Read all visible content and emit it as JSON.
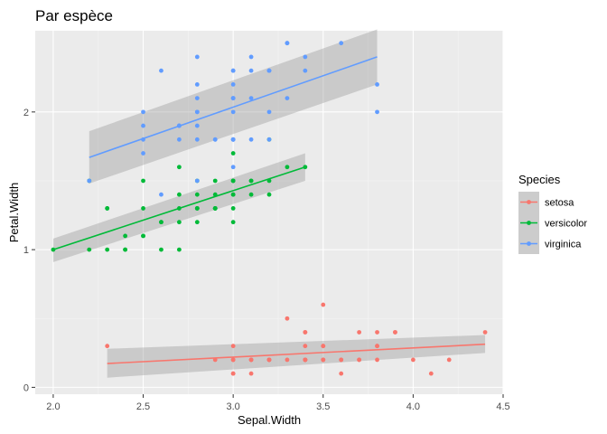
{
  "chart_data": {
    "type": "scatter",
    "title": "Par espèce",
    "xlabel": "Sepal.Width",
    "ylabel": "Petal.Width",
    "xlim": [
      1.9,
      4.5
    ],
    "ylim": [
      -0.05,
      2.59
    ],
    "x_ticks": [
      "2.0",
      "2.5",
      "3.0",
      "3.5",
      "4.0",
      "4.5"
    ],
    "x_tick_values": [
      2.0,
      2.5,
      3.0,
      3.5,
      4.0,
      4.5
    ],
    "y_ticks": [
      "0",
      "1",
      "2"
    ],
    "y_tick_values": [
      0,
      1,
      2
    ],
    "grid": true,
    "legend": {
      "title": "Species",
      "placement": "right"
    },
    "series": [
      {
        "name": "setosa",
        "color": "#F8766D",
        "points": [
          [
            3.5,
            0.2
          ],
          [
            3.0,
            0.2
          ],
          [
            3.2,
            0.2
          ],
          [
            3.1,
            0.2
          ],
          [
            3.6,
            0.2
          ],
          [
            3.9,
            0.4
          ],
          [
            3.4,
            0.3
          ],
          [
            3.4,
            0.2
          ],
          [
            2.9,
            0.2
          ],
          [
            3.1,
            0.1
          ],
          [
            3.7,
            0.2
          ],
          [
            3.4,
            0.2
          ],
          [
            3.0,
            0.1
          ],
          [
            3.0,
            0.1
          ],
          [
            4.0,
            0.2
          ],
          [
            4.4,
            0.4
          ],
          [
            3.9,
            0.4
          ],
          [
            3.5,
            0.3
          ],
          [
            3.8,
            0.3
          ],
          [
            3.8,
            0.3
          ],
          [
            3.4,
            0.2
          ],
          [
            3.7,
            0.4
          ],
          [
            3.6,
            0.2
          ],
          [
            3.3,
            0.5
          ],
          [
            3.4,
            0.2
          ],
          [
            3.0,
            0.2
          ],
          [
            3.4,
            0.4
          ],
          [
            3.5,
            0.2
          ],
          [
            3.4,
            0.2
          ],
          [
            3.2,
            0.2
          ],
          [
            3.1,
            0.2
          ],
          [
            3.4,
            0.4
          ],
          [
            4.1,
            0.1
          ],
          [
            4.2,
            0.2
          ],
          [
            3.1,
            0.2
          ],
          [
            3.2,
            0.2
          ],
          [
            3.5,
            0.2
          ],
          [
            3.6,
            0.1
          ],
          [
            3.0,
            0.2
          ],
          [
            3.4,
            0.2
          ],
          [
            3.5,
            0.3
          ],
          [
            2.3,
            0.3
          ],
          [
            3.2,
            0.2
          ],
          [
            3.5,
            0.6
          ],
          [
            3.8,
            0.4
          ],
          [
            3.0,
            0.3
          ],
          [
            3.8,
            0.2
          ],
          [
            3.2,
            0.2
          ],
          [
            3.7,
            0.2
          ],
          [
            3.3,
            0.2
          ]
        ],
        "fit": {
          "x": [
            2.3,
            4.4
          ],
          "y": [
            0.173,
            0.313
          ]
        },
        "band_upper": [
          0.28,
          0.38
        ],
        "band_lower": [
          0.07,
          0.25
        ]
      },
      {
        "name": "versicolor",
        "color": "#00BA38",
        "points": [
          [
            3.2,
            1.4
          ],
          [
            3.2,
            1.5
          ],
          [
            3.1,
            1.5
          ],
          [
            2.3,
            1.3
          ],
          [
            2.8,
            1.5
          ],
          [
            2.8,
            1.3
          ],
          [
            3.3,
            1.6
          ],
          [
            2.4,
            1.0
          ],
          [
            2.9,
            1.3
          ],
          [
            2.7,
            1.4
          ],
          [
            2.0,
            1.0
          ],
          [
            3.0,
            1.5
          ],
          [
            2.2,
            1.0
          ],
          [
            2.9,
            1.4
          ],
          [
            2.9,
            1.3
          ],
          [
            3.1,
            1.4
          ],
          [
            3.0,
            1.5
          ],
          [
            2.7,
            1.0
          ],
          [
            2.2,
            1.5
          ],
          [
            2.5,
            1.1
          ],
          [
            3.2,
            1.8
          ],
          [
            2.8,
            1.3
          ],
          [
            2.5,
            1.5
          ],
          [
            2.8,
            1.2
          ],
          [
            2.9,
            1.3
          ],
          [
            3.0,
            1.4
          ],
          [
            2.8,
            1.4
          ],
          [
            3.0,
            1.7
          ],
          [
            2.9,
            1.5
          ],
          [
            2.6,
            1.0
          ],
          [
            2.4,
            1.1
          ],
          [
            2.4,
            1.0
          ],
          [
            2.7,
            1.2
          ],
          [
            2.7,
            1.6
          ],
          [
            3.0,
            1.5
          ],
          [
            3.4,
            1.6
          ],
          [
            3.1,
            1.5
          ],
          [
            2.3,
            1.3
          ],
          [
            3.0,
            1.3
          ],
          [
            2.5,
            1.3
          ],
          [
            2.6,
            1.2
          ],
          [
            3.0,
            1.4
          ],
          [
            2.6,
            1.2
          ],
          [
            2.3,
            1.0
          ],
          [
            2.7,
            1.3
          ],
          [
            3.0,
            1.2
          ],
          [
            2.9,
            1.3
          ],
          [
            2.9,
            1.3
          ],
          [
            2.5,
            1.1
          ],
          [
            2.8,
            1.3
          ]
        ],
        "fit": {
          "x": [
            2.0,
            3.4
          ],
          "y": [
            1.0,
            1.6
          ]
        },
        "band_upper": [
          1.08,
          1.7
        ],
        "band_lower": [
          0.91,
          1.5
        ]
      },
      {
        "name": "virginica",
        "color": "#619CFF",
        "points": [
          [
            3.3,
            2.5
          ],
          [
            2.7,
            1.9
          ],
          [
            3.0,
            2.1
          ],
          [
            2.9,
            1.8
          ],
          [
            3.0,
            2.2
          ],
          [
            3.0,
            2.1
          ],
          [
            2.5,
            1.7
          ],
          [
            2.9,
            1.8
          ],
          [
            2.5,
            1.8
          ],
          [
            3.6,
            2.5
          ],
          [
            3.2,
            2.0
          ],
          [
            2.7,
            1.9
          ],
          [
            3.0,
            2.1
          ],
          [
            2.5,
            2.0
          ],
          [
            2.8,
            2.4
          ],
          [
            3.2,
            2.3
          ],
          [
            3.0,
            1.8
          ],
          [
            3.8,
            2.2
          ],
          [
            2.6,
            2.3
          ],
          [
            2.2,
            1.5
          ],
          [
            3.2,
            2.3
          ],
          [
            2.8,
            2.0
          ],
          [
            2.8,
            2.0
          ],
          [
            2.7,
            1.8
          ],
          [
            3.3,
            2.1
          ],
          [
            3.2,
            1.8
          ],
          [
            2.8,
            1.8
          ],
          [
            3.0,
            1.8
          ],
          [
            2.8,
            2.1
          ],
          [
            3.0,
            1.6
          ],
          [
            2.8,
            1.9
          ],
          [
            3.8,
            2.0
          ],
          [
            2.8,
            2.2
          ],
          [
            2.8,
            1.5
          ],
          [
            2.6,
            1.4
          ],
          [
            3.0,
            2.3
          ],
          [
            3.4,
            2.4
          ],
          [
            3.1,
            1.8
          ],
          [
            3.0,
            1.8
          ],
          [
            3.1,
            2.1
          ],
          [
            3.1,
            2.4
          ],
          [
            3.1,
            2.3
          ],
          [
            2.7,
            1.9
          ],
          [
            3.2,
            2.3
          ],
          [
            3.3,
            2.5
          ],
          [
            3.0,
            2.3
          ],
          [
            2.5,
            1.9
          ],
          [
            3.0,
            2.0
          ],
          [
            3.4,
            2.3
          ],
          [
            3.0,
            1.8
          ]
        ],
        "fit": {
          "x": [
            2.2,
            3.8
          ],
          "y": [
            1.67,
            2.4
          ]
        },
        "band_upper": [
          1.86,
          2.6
        ],
        "band_lower": [
          1.48,
          2.2
        ]
      }
    ]
  }
}
